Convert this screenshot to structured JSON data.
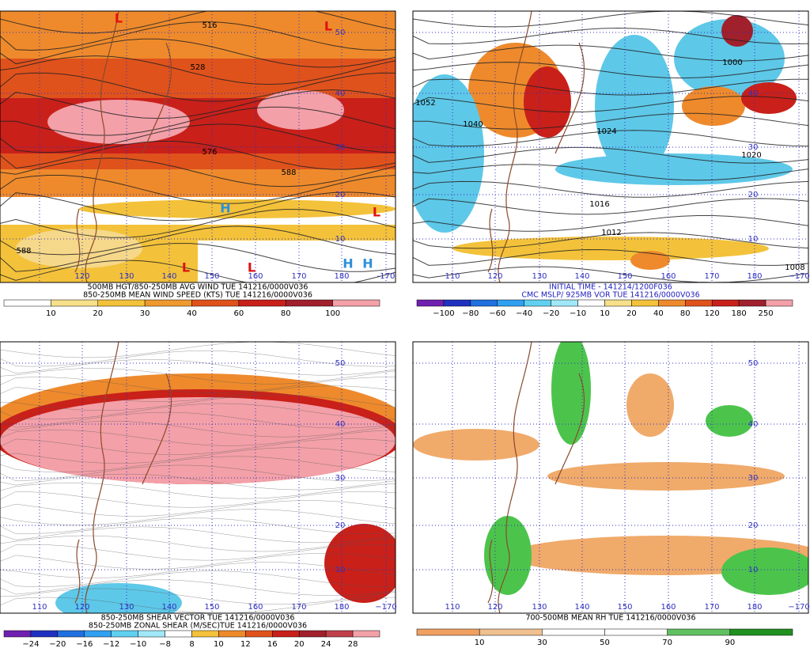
{
  "panels": [
    {
      "caption": [
        "500MB HGT/850-250MB AVG WIND TUE 141216/0000V036",
        "850-250MB MEAN WIND SPEED (KTS) TUE 141216/0000V036"
      ],
      "colorbar": [
        "10",
        "20",
        "30",
        "40",
        "60",
        "80",
        "100"
      ],
      "lon_labels": [
        "120",
        "130",
        "140",
        "150",
        "160",
        "170",
        "180",
        "-170"
      ],
      "lat_labels": [
        "50",
        "40",
        "30",
        "20",
        "10"
      ],
      "contour_labels": [
        "516",
        "528",
        "576",
        "588",
        "588"
      ],
      "markers": [
        "L",
        "L",
        "H",
        "L",
        "L",
        "H",
        "H",
        "L"
      ]
    },
    {
      "caption": [
        "INITIAL TIME - 141214/1200F036",
        "CMC MSLP/ 925MB VOR TUE 141216/0000V036"
      ],
      "colorbar": [
        "−100",
        "−80",
        "−60",
        "−40",
        "−20",
        "−10",
        "10",
        "20",
        "40",
        "80",
        "120",
        "180",
        "250"
      ],
      "lon_labels": [
        "110",
        "120",
        "130",
        "140",
        "150",
        "160",
        "170",
        "180",
        "−170"
      ],
      "lat_labels": [
        "40",
        "30",
        "20",
        "10"
      ],
      "contour_labels": [
        "1052",
        "1040",
        "1024",
        "1016",
        "1012",
        "1000",
        "1020",
        "1008"
      ],
      "markers": []
    },
    {
      "caption": [
        "850-250MB SHEAR VECTOR TUE 141216/0000V036",
        "850-250MB ZONAL SHEAR (M/SEC)TUE 141216/0000V036"
      ],
      "colorbar": [
        "−24",
        "−20",
        "−16",
        "−12",
        "−10",
        "−8",
        "8",
        "10",
        "12",
        "16",
        "20",
        "24",
        "28"
      ],
      "lon_labels": [
        "110",
        "120",
        "130",
        "140",
        "150",
        "160",
        "170",
        "180",
        "−170"
      ],
      "lat_labels": [
        "50",
        "40",
        "30",
        "20",
        "10"
      ],
      "contour_labels": [],
      "markers": []
    },
    {
      "caption": [
        "700-500MB MEAN RH TUE 141216/0000V036"
      ],
      "colorbar": [
        "10",
        "30",
        "50",
        "70",
        "90"
      ],
      "lon_labels": [
        "110",
        "120",
        "130",
        "140",
        "150",
        "160",
        "170",
        "180",
        "−170"
      ],
      "lat_labels": [
        "50",
        "40",
        "30",
        "20",
        "10"
      ],
      "contour_labels": [],
      "markers": []
    }
  ]
}
